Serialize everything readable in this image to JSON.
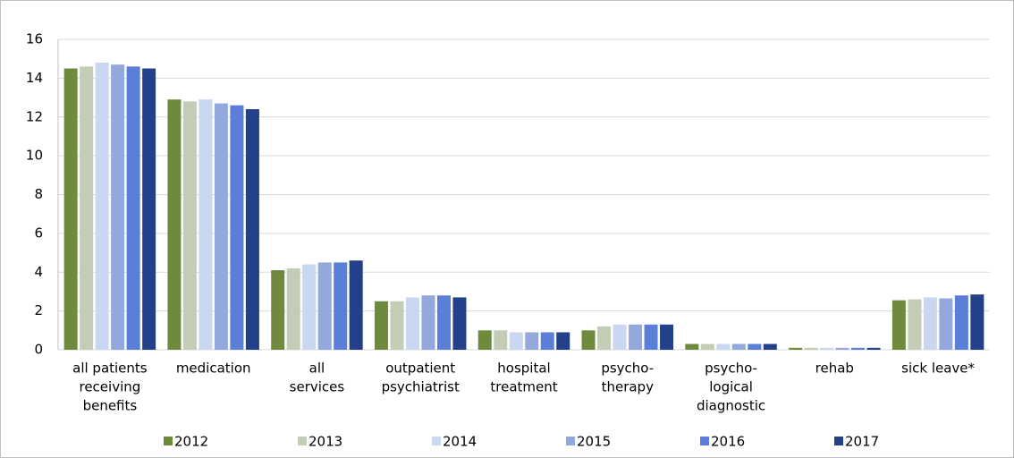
{
  "chart_data": {
    "type": "bar",
    "categories": [
      [
        "all patients",
        "receiving",
        "benefits"
      ],
      [
        "medication"
      ],
      [
        "all",
        "services"
      ],
      [
        "outpatient",
        "psychiatrist"
      ],
      [
        "hospital",
        "treatment"
      ],
      [
        "psycho-",
        "therapy"
      ],
      [
        "psycho-",
        "logical",
        "diagnostic"
      ],
      [
        "rehab"
      ],
      [
        "sick leave*"
      ]
    ],
    "series": [
      {
        "name": "2012",
        "color": "#6e8b3d",
        "values": [
          14.5,
          12.9,
          4.1,
          2.5,
          1.0,
          1.0,
          0.3,
          0.1,
          2.55
        ]
      },
      {
        "name": "2013",
        "color": "#c3cdb6",
        "values": [
          14.6,
          12.8,
          4.2,
          2.5,
          1.0,
          1.2,
          0.3,
          0.1,
          2.6
        ]
      },
      {
        "name": "2014",
        "color": "#c9d7f0",
        "values": [
          14.8,
          12.9,
          4.4,
          2.7,
          0.9,
          1.3,
          0.3,
          0.1,
          2.7
        ]
      },
      {
        "name": "2015",
        "color": "#93a9dd",
        "values": [
          14.7,
          12.7,
          4.5,
          2.8,
          0.9,
          1.3,
          0.3,
          0.1,
          2.65
        ]
      },
      {
        "name": "2016",
        "color": "#5b7fd8",
        "values": [
          14.6,
          12.6,
          4.5,
          2.8,
          0.9,
          1.3,
          0.3,
          0.1,
          2.8
        ]
      },
      {
        "name": "2017",
        "color": "#23418a",
        "values": [
          14.5,
          12.4,
          4.6,
          2.7,
          0.9,
          1.3,
          0.3,
          0.1,
          2.85
        ]
      }
    ],
    "ylim": [
      0,
      16
    ],
    "yticks": [
      0,
      2,
      4,
      6,
      8,
      10,
      12,
      14,
      16
    ],
    "grid": true,
    "legend": "bottom"
  }
}
